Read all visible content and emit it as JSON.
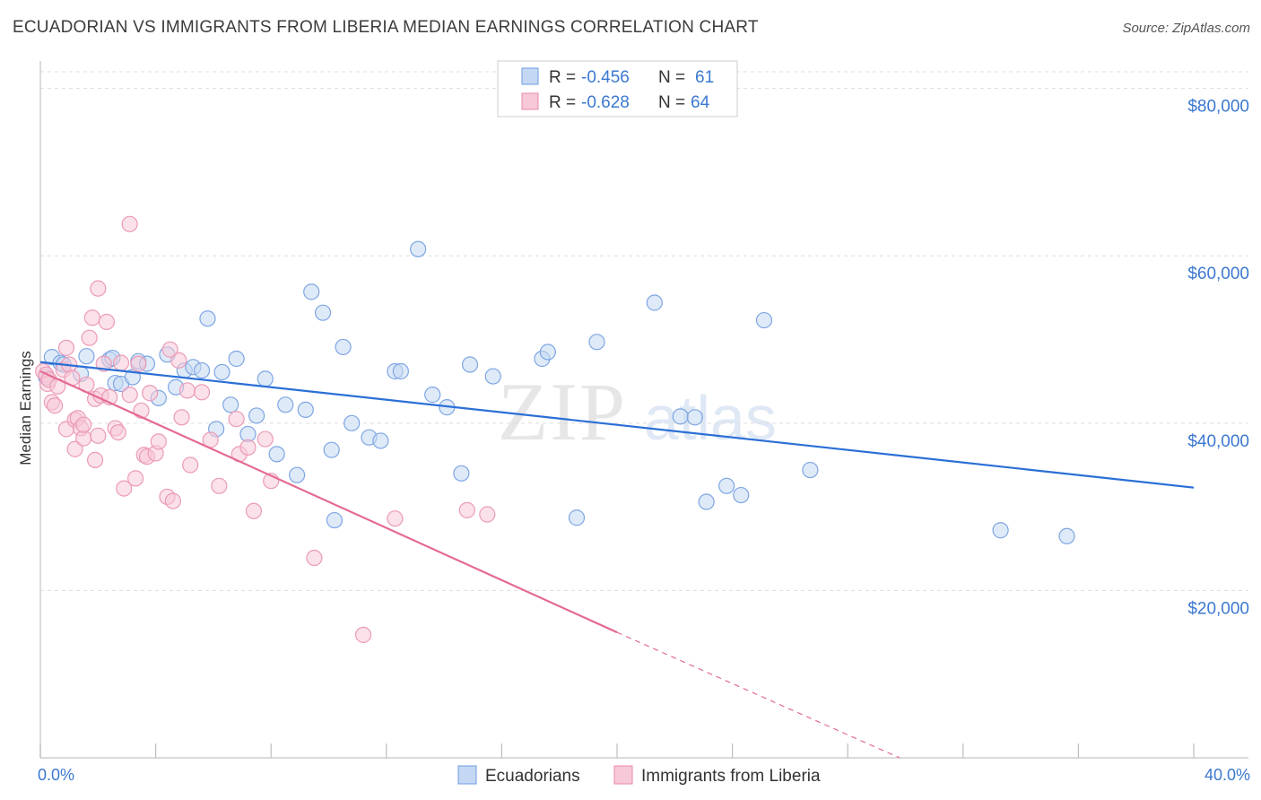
{
  "header": {
    "title": "ECUADORIAN VS IMMIGRANTS FROM LIBERIA MEDIAN EARNINGS CORRELATION CHART",
    "source": "Source: ZipAtlas.com"
  },
  "watermark": {
    "zip": "ZIP",
    "atlas": "atlas"
  },
  "colors": {
    "ecuadorians_fill": "#c5d8f3",
    "ecuadorians_line": "#2b6fd6",
    "liberia_fill": "#f7c8d7",
    "liberia_line": "#e46a93",
    "tick_text": "#3b78d0",
    "grid": "#dddddd"
  },
  "legend_top": {
    "rows": [
      {
        "r_label": "R =",
        "r_value": "-0.456",
        "n_label": "N =",
        "n_value": "61"
      },
      {
        "r_label": "R =",
        "r_value": "-0.628",
        "n_label": "N =",
        "n_value": "64"
      }
    ]
  },
  "legend_bottom": [
    "Ecuadorians",
    "Immigrants from Liberia"
  ],
  "chart_data": {
    "type": "scatter",
    "title": "ECUADORIAN VS IMMIGRANTS FROM LIBERIA MEDIAN EARNINGS CORRELATION CHART",
    "xlabel": "",
    "ylabel": "Median Earnings",
    "xlim": [
      0,
      40
    ],
    "ylim": [
      0,
      82000
    ],
    "x_tick_labels": [
      "0.0%",
      "40.0%"
    ],
    "y_ticks": [
      20000,
      40000,
      60000,
      80000
    ],
    "y_tick_labels": [
      "$20,000",
      "$40,000",
      "$60,000",
      "$80,000"
    ],
    "grid": true,
    "legend_position": "top-center",
    "series": [
      {
        "name": "Ecuadorians",
        "R": -0.456,
        "N": 61,
        "trend": {
          "x": [
            0,
            40
          ],
          "y": [
            47300,
            32300
          ]
        },
        "points": [
          [
            0.2,
            45500
          ],
          [
            0.4,
            47900
          ],
          [
            0.7,
            47200
          ],
          [
            0.8,
            47000
          ],
          [
            1.4,
            45900
          ],
          [
            1.6,
            48000
          ],
          [
            2.4,
            47600
          ],
          [
            2.5,
            47800
          ],
          [
            2.6,
            44800
          ],
          [
            2.8,
            44700
          ],
          [
            3.2,
            45500
          ],
          [
            3.4,
            47400
          ],
          [
            3.7,
            47100
          ],
          [
            4.1,
            43000
          ],
          [
            4.4,
            48200
          ],
          [
            4.7,
            44300
          ],
          [
            5.0,
            46300
          ],
          [
            5.3,
            46700
          ],
          [
            5.6,
            46300
          ],
          [
            5.8,
            52500
          ],
          [
            6.1,
            39300
          ],
          [
            6.3,
            46100
          ],
          [
            6.6,
            42200
          ],
          [
            6.8,
            47700
          ],
          [
            7.2,
            38700
          ],
          [
            7.5,
            40900
          ],
          [
            7.8,
            45300
          ],
          [
            8.2,
            36300
          ],
          [
            8.5,
            42200
          ],
          [
            8.9,
            33800
          ],
          [
            9.2,
            41600
          ],
          [
            9.4,
            55700
          ],
          [
            9.8,
            53200
          ],
          [
            10.1,
            36800
          ],
          [
            10.2,
            28400
          ],
          [
            10.5,
            49100
          ],
          [
            10.8,
            40000
          ],
          [
            11.4,
            38300
          ],
          [
            11.8,
            37900
          ],
          [
            12.3,
            46200
          ],
          [
            12.5,
            46200
          ],
          [
            13.1,
            60800
          ],
          [
            13.6,
            43400
          ],
          [
            14.1,
            41900
          ],
          [
            14.6,
            34000
          ],
          [
            14.9,
            47000
          ],
          [
            15.7,
            45600
          ],
          [
            17.4,
            47700
          ],
          [
            17.6,
            48500
          ],
          [
            18.6,
            28700
          ],
          [
            19.3,
            49700
          ],
          [
            21.3,
            54400
          ],
          [
            22.2,
            40800
          ],
          [
            22.7,
            40700
          ],
          [
            23.1,
            30600
          ],
          [
            23.8,
            32500
          ],
          [
            24.3,
            31400
          ],
          [
            25.1,
            52300
          ],
          [
            26.7,
            34400
          ],
          [
            33.3,
            27200
          ],
          [
            35.6,
            26500
          ]
        ]
      },
      {
        "name": "Immigrants from Liberia",
        "R": -0.628,
        "N": 64,
        "trend": {
          "x": [
            0,
            20
          ],
          "y": [
            46200,
            15000
          ]
        },
        "trend_dashed": {
          "x": [
            20,
            29.8
          ],
          "y": [
            15000,
            0
          ]
        },
        "points": [
          [
            0.1,
            46200
          ],
          [
            0.2,
            45800
          ],
          [
            0.25,
            44700
          ],
          [
            0.3,
            45200
          ],
          [
            0.4,
            42500
          ],
          [
            0.5,
            42100
          ],
          [
            0.6,
            44400
          ],
          [
            0.8,
            46400
          ],
          [
            0.9,
            39300
          ],
          [
            0.9,
            49000
          ],
          [
            1.0,
            47000
          ],
          [
            1.1,
            45400
          ],
          [
            1.2,
            40400
          ],
          [
            1.2,
            36900
          ],
          [
            1.3,
            40600
          ],
          [
            1.4,
            39400
          ],
          [
            1.5,
            38200
          ],
          [
            1.5,
            39800
          ],
          [
            1.6,
            44600
          ],
          [
            1.7,
            50200
          ],
          [
            1.8,
            52600
          ],
          [
            1.9,
            35600
          ],
          [
            1.9,
            42900
          ],
          [
            2.0,
            56100
          ],
          [
            2.0,
            38500
          ],
          [
            2.1,
            43300
          ],
          [
            2.3,
            52100
          ],
          [
            2.4,
            43100
          ],
          [
            2.6,
            39400
          ],
          [
            2.7,
            38900
          ],
          [
            2.8,
            47200
          ],
          [
            2.9,
            32200
          ],
          [
            3.1,
            63800
          ],
          [
            3.1,
            43400
          ],
          [
            3.3,
            33400
          ],
          [
            3.4,
            47100
          ],
          [
            3.5,
            41500
          ],
          [
            3.6,
            36200
          ],
          [
            3.7,
            36000
          ],
          [
            3.8,
            43600
          ],
          [
            4.0,
            36400
          ],
          [
            4.1,
            37800
          ],
          [
            4.4,
            31200
          ],
          [
            4.6,
            30700
          ],
          [
            4.8,
            47500
          ],
          [
            4.9,
            40700
          ],
          [
            5.1,
            43900
          ],
          [
            5.2,
            35000
          ],
          [
            5.6,
            43700
          ],
          [
            5.9,
            38000
          ],
          [
            6.2,
            32500
          ],
          [
            6.8,
            40500
          ],
          [
            6.9,
            36300
          ],
          [
            7.2,
            37100
          ],
          [
            7.4,
            29500
          ],
          [
            7.8,
            38100
          ],
          [
            8.0,
            33100
          ],
          [
            9.5,
            23900
          ],
          [
            11.2,
            14700
          ],
          [
            12.3,
            28600
          ],
          [
            14.8,
            29600
          ],
          [
            15.5,
            29100
          ],
          [
            4.5,
            48800
          ],
          [
            2.2,
            47100
          ]
        ]
      }
    ]
  }
}
